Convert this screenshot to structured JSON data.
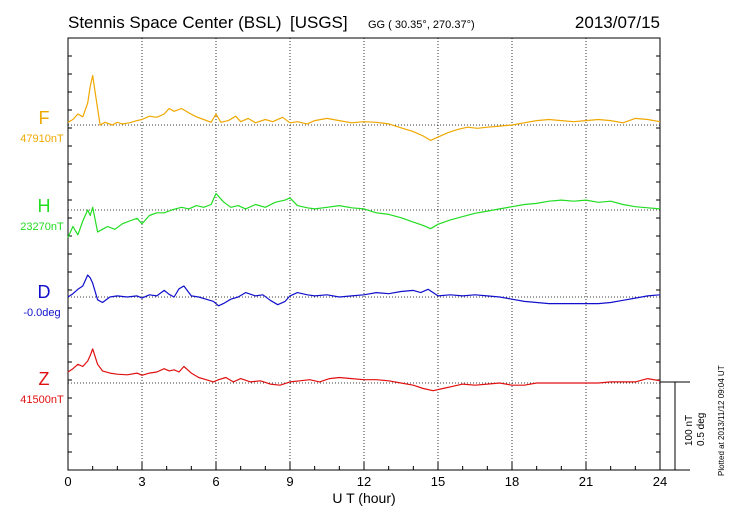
{
  "header": {
    "station": "Stennis Space Center (BSL)",
    "agency": "[USGS]",
    "coords": "GG ( 30.35°, 270.37°)",
    "date": "2013/07/15"
  },
  "footer": {
    "plotted": "Plotted at 2013/11/12 09:04 UT"
  },
  "scale": {
    "nt": "100 nT",
    "deg": "0.5 deg"
  },
  "colors": {
    "F": "#f0a800",
    "H": "#22dd22",
    "D": "#1010cc",
    "Z": "#e01010"
  },
  "chart_data": {
    "type": "line",
    "title": "Stennis Space Center (BSL)  [USGS]  2013/07/15",
    "xlabel": "U T (hour)",
    "x_ticks": [
      "0",
      "3",
      "6",
      "9",
      "12",
      "15",
      "18",
      "21",
      "24"
    ],
    "xlim": [
      0,
      24
    ],
    "grid": true,
    "series": [
      {
        "name": "F",
        "baseline_label": "47910nT",
        "x": [
          0,
          0.2,
          0.4,
          0.6,
          0.8,
          0.9,
          1.0,
          1.1,
          1.3,
          1.5,
          1.8,
          2.0,
          2.2,
          2.5,
          2.8,
          3.0,
          3.3,
          3.6,
          3.9,
          4.1,
          4.3,
          4.6,
          4.9,
          5.2,
          5.5,
          5.8,
          6.0,
          6.2,
          6.5,
          6.8,
          7.0,
          7.3,
          7.6,
          8.0,
          8.3,
          8.7,
          9.0,
          9.3,
          9.7,
          10.0,
          10.5,
          11.0,
          11.5,
          12.0,
          12.5,
          13.0,
          13.5,
          14.0,
          14.4,
          14.7,
          15.0,
          15.4,
          15.8,
          16.2,
          16.6,
          17.0,
          17.5,
          18.0,
          18.5,
          19.0,
          19.5,
          20.0,
          20.5,
          21.0,
          21.5,
          22.0,
          22.5,
          23.0,
          23.5,
          24.0
        ],
        "y": [
          5,
          10,
          20,
          15,
          40,
          70,
          90,
          60,
          0,
          5,
          0,
          5,
          2,
          4,
          8,
          10,
          16,
          14,
          20,
          30,
          25,
          30,
          22,
          15,
          10,
          5,
          20,
          5,
          8,
          16,
          6,
          12,
          4,
          10,
          6,
          14,
          4,
          6,
          2,
          8,
          12,
          8,
          4,
          6,
          5,
          2,
          -5,
          -12,
          -20,
          -28,
          -22,
          -14,
          -8,
          -4,
          -6,
          -4,
          -2,
          0,
          4,
          8,
          10,
          8,
          6,
          8,
          10,
          8,
          4,
          12,
          10,
          6
        ]
      },
      {
        "name": "H",
        "baseline_label": "23270nT",
        "x": [
          0,
          0.2,
          0.4,
          0.6,
          0.8,
          0.9,
          1.0,
          1.2,
          1.4,
          1.6,
          1.9,
          2.2,
          2.5,
          2.8,
          3.0,
          3.3,
          3.6,
          3.9,
          4.2,
          4.6,
          4.9,
          5.2,
          5.5,
          5.8,
          6.0,
          6.3,
          6.6,
          6.9,
          7.2,
          7.6,
          8.0,
          8.4,
          8.8,
          9.0,
          9.3,
          9.7,
          10.0,
          10.5,
          11.0,
          11.5,
          12.0,
          12.5,
          13.0,
          13.5,
          14.0,
          14.4,
          14.7,
          15.0,
          15.5,
          16.0,
          16.5,
          17.0,
          17.5,
          18.0,
          18.5,
          19.0,
          19.5,
          20.0,
          20.5,
          21.0,
          21.5,
          22.0,
          22.5,
          23.0,
          23.5,
          24.0
        ],
        "y": [
          -50,
          -30,
          -45,
          -20,
          0,
          -10,
          5,
          -40,
          -35,
          -30,
          -35,
          -25,
          -20,
          -15,
          -25,
          -10,
          -5,
          -5,
          0,
          5,
          2,
          8,
          5,
          10,
          30,
          15,
          5,
          8,
          2,
          10,
          5,
          14,
          18,
          22,
          8,
          4,
          2,
          5,
          8,
          4,
          2,
          -5,
          -8,
          -14,
          -22,
          -28,
          -34,
          -26,
          -18,
          -12,
          -6,
          -2,
          2,
          6,
          10,
          12,
          16,
          18,
          16,
          18,
          14,
          16,
          10,
          6,
          4,
          2
        ]
      },
      {
        "name": "D",
        "baseline_label": "-0.0deg",
        "x": [
          0,
          0.2,
          0.4,
          0.6,
          0.8,
          0.9,
          1.0,
          1.2,
          1.4,
          1.7,
          2.0,
          2.4,
          2.8,
          3.0,
          3.3,
          3.6,
          3.9,
          4.1,
          4.3,
          4.5,
          4.7,
          5.0,
          5.3,
          5.6,
          5.9,
          6.1,
          6.3,
          6.6,
          6.9,
          7.2,
          7.6,
          7.9,
          8.2,
          8.5,
          8.8,
          9.0,
          9.3,
          9.7,
          10.0,
          10.5,
          11.0,
          11.5,
          12.0,
          12.5,
          13.0,
          13.5,
          14.0,
          14.3,
          14.6,
          15.0,
          15.5,
          16.0,
          16.5,
          17.0,
          17.5,
          18.0,
          18.5,
          19.0,
          19.5,
          20.0,
          20.5,
          21.0,
          21.5,
          22.0,
          22.5,
          23.0,
          23.5,
          24.0
        ],
        "y": [
          0,
          6,
          14,
          20,
          40,
          35,
          25,
          -5,
          -10,
          0,
          2,
          0,
          2,
          -2,
          4,
          2,
          12,
          5,
          0,
          15,
          20,
          2,
          0,
          -4,
          -8,
          -16,
          -12,
          -4,
          0,
          8,
          2,
          4,
          -6,
          -14,
          -8,
          2,
          8,
          4,
          2,
          4,
          0,
          2,
          4,
          8,
          6,
          10,
          12,
          8,
          14,
          2,
          4,
          2,
          4,
          2,
          0,
          -4,
          -8,
          -10,
          -12,
          -12,
          -12,
          -12,
          -12,
          -10,
          -6,
          -2,
          2,
          4
        ]
      },
      {
        "name": "Z",
        "baseline_label": "41500nT",
        "x": [
          0,
          0.2,
          0.4,
          0.6,
          0.8,
          0.9,
          1.0,
          1.2,
          1.4,
          1.7,
          2.0,
          2.4,
          2.8,
          3.0,
          3.3,
          3.6,
          3.9,
          4.1,
          4.3,
          4.5,
          4.7,
          5.0,
          5.3,
          5.6,
          5.9,
          6.1,
          6.4,
          6.7,
          7.0,
          7.4,
          7.8,
          8.2,
          8.6,
          9.0,
          9.4,
          9.8,
          10.2,
          10.6,
          11.0,
          11.5,
          12.0,
          12.5,
          13.0,
          13.5,
          14.0,
          14.4,
          14.8,
          15.2,
          15.6,
          16.0,
          16.5,
          17.0,
          17.5,
          18.0,
          18.5,
          19.0,
          19.5,
          20.0,
          20.5,
          21.0,
          21.5,
          22.0,
          22.5,
          23.0,
          23.5,
          24.0
        ],
        "y": [
          20,
          26,
          34,
          30,
          40,
          50,
          62,
          34,
          22,
          18,
          16,
          15,
          18,
          14,
          18,
          20,
          26,
          22,
          24,
          20,
          30,
          18,
          10,
          6,
          2,
          6,
          10,
          2,
          8,
          2,
          4,
          -2,
          -4,
          2,
          4,
          6,
          2,
          8,
          10,
          8,
          6,
          6,
          4,
          0,
          -4,
          -10,
          -14,
          -10,
          -6,
          -2,
          -4,
          -2,
          0,
          -4,
          -4,
          0,
          0,
          0,
          0,
          0,
          0,
          2,
          2,
          2,
          8,
          4
        ]
      }
    ]
  }
}
